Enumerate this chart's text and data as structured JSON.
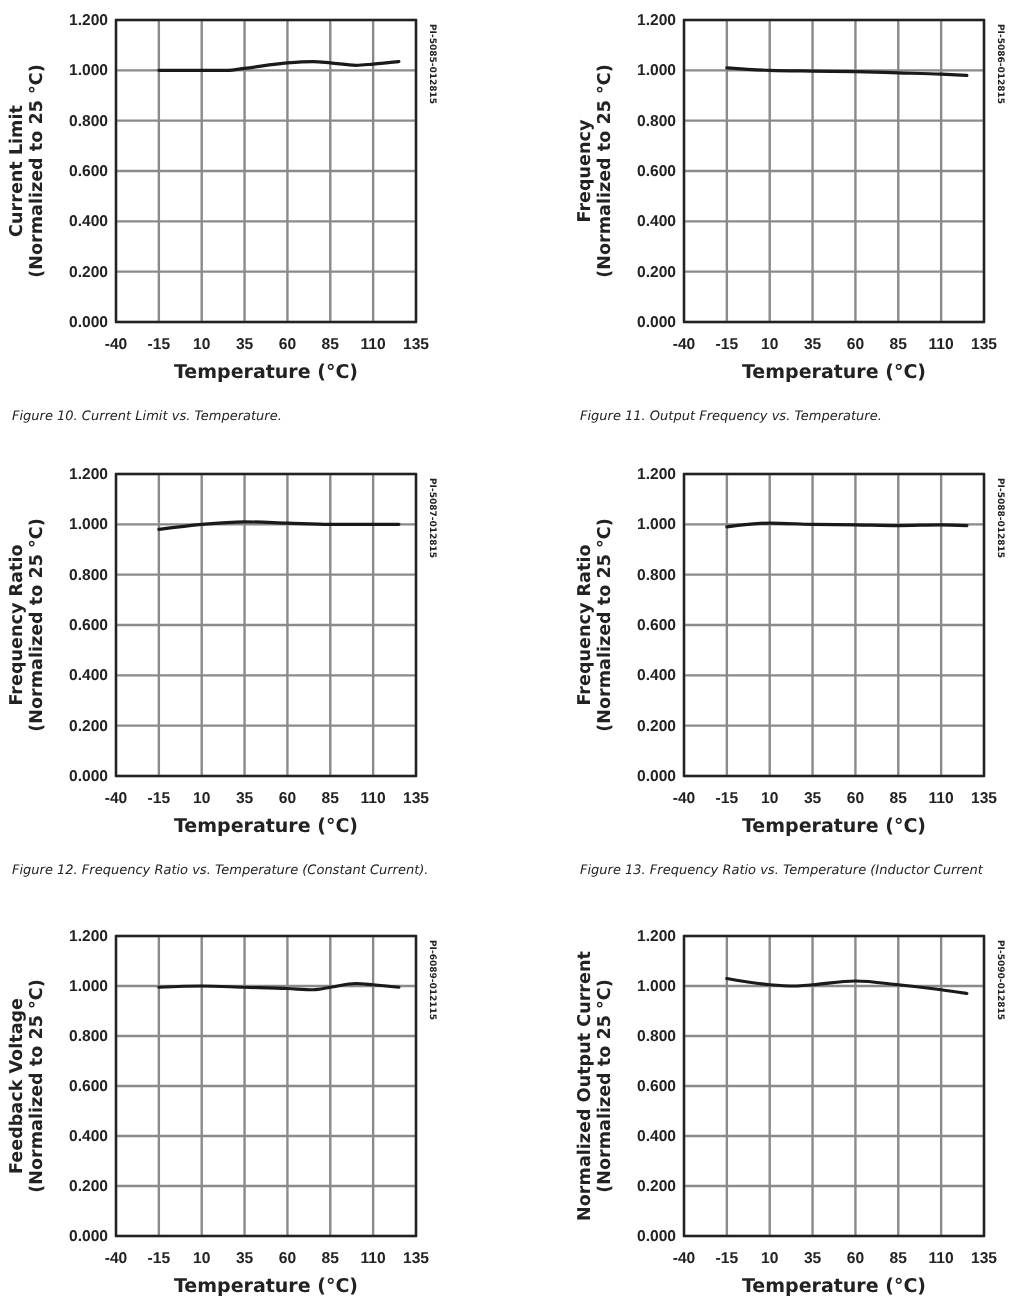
{
  "chart_data": [
    {
      "type": "line",
      "xlabel": "Temperature (°C)",
      "ylabel": "Current Limit\n(Normalized to 25 °C)",
      "x": [
        -15,
        10,
        25,
        35,
        60,
        75,
        85,
        100,
        110,
        125
      ],
      "series": [
        {
          "color": "#1a1a1a",
          "values": [
            1.0,
            1.0,
            1.0,
            1.008,
            1.03,
            1.035,
            1.03,
            1.02,
            1.025,
            1.035
          ]
        }
      ],
      "xlim": [
        -40,
        135
      ],
      "xticks": [
        -40,
        -15,
        10,
        35,
        60,
        85,
        110,
        135
      ],
      "ylim": [
        0,
        1.2
      ],
      "yticks": [
        {
          "value": 0,
          "label": "0.000"
        },
        {
          "value": 0.2,
          "label": "0.200"
        },
        {
          "value": 0.4,
          "label": "0.400"
        },
        {
          "value": 0.6,
          "label": "0.600"
        },
        {
          "value": 0.8,
          "label": "0.800"
        },
        {
          "value": 1,
          "label": "1.000"
        },
        {
          "value": 1.2,
          "label": "1.200"
        }
      ],
      "grid": true,
      "marker": "none",
      "line_style": "solid",
      "annotations": [
        "PI-5085-012815",
        "Figure 10.  Current Limit vs. Temperature."
      ]
    },
    {
      "type": "line",
      "xlabel": "Temperature (°C)",
      "ylabel": "Frequency\n(Normalized to 25 °C)",
      "x": [
        -15,
        10,
        35,
        60,
        85,
        110,
        125
      ],
      "series": [
        {
          "color": "#1a1a1a",
          "values": [
            1.01,
            1.0,
            0.997,
            0.995,
            0.99,
            0.985,
            0.98
          ]
        }
      ],
      "xlim": [
        -40,
        135
      ],
      "xticks": [
        -40,
        -15,
        10,
        35,
        60,
        85,
        110,
        135
      ],
      "ylim": [
        0,
        1.2
      ],
      "yticks": [
        {
          "value": 0,
          "label": "0.000"
        },
        {
          "value": 0.2,
          "label": "0.200"
        },
        {
          "value": 0.4,
          "label": "0.400"
        },
        {
          "value": 0.6,
          "label": "0.600"
        },
        {
          "value": 0.8,
          "label": "0.800"
        },
        {
          "value": 1,
          "label": "1.000"
        },
        {
          "value": 1.2,
          "label": "1.200"
        }
      ],
      "grid": true,
      "marker": "none",
      "line_style": "solid",
      "annotations": [
        "PI-5086-012815",
        "Figure 11.   Output Frequency vs. Temperature."
      ]
    },
    {
      "type": "line",
      "xlabel": "Temperature (°C)",
      "ylabel": "Frequency Ratio\n(Normalized to 25 °C)",
      "x": [
        -15,
        10,
        35,
        60,
        85,
        110,
        125
      ],
      "series": [
        {
          "color": "#1a1a1a",
          "values": [
            0.98,
            1.0,
            1.01,
            1.005,
            1.0,
            1.0,
            1.0
          ]
        }
      ],
      "xlim": [
        -40,
        135
      ],
      "xticks": [
        -40,
        -15,
        10,
        35,
        60,
        85,
        110,
        135
      ],
      "ylim": [
        0,
        1.2
      ],
      "yticks": [
        {
          "value": 0,
          "label": "0.000"
        },
        {
          "value": 0.2,
          "label": "0.200"
        },
        {
          "value": 0.4,
          "label": "0.400"
        },
        {
          "value": 0.6,
          "label": "0.600"
        },
        {
          "value": 0.8,
          "label": "0.800"
        },
        {
          "value": 1,
          "label": "1.000"
        },
        {
          "value": 1.2,
          "label": "1.200"
        }
      ],
      "grid": true,
      "marker": "none",
      "line_style": "solid",
      "annotations": [
        "PI-5087-012815",
        "Figure 12.  Frequency Ratio vs. Temperature (Constant Current)."
      ]
    },
    {
      "type": "line",
      "xlabel": "Temperature (°C)",
      "ylabel": "Frequency Ratio\n(Normalized to 25 °C)",
      "x": [
        -15,
        10,
        35,
        60,
        85,
        110,
        125
      ],
      "series": [
        {
          "color": "#1a1a1a",
          "values": [
            0.99,
            1.005,
            1.0,
            0.998,
            0.995,
            0.998,
            0.995
          ]
        }
      ],
      "xlim": [
        -40,
        135
      ],
      "xticks": [
        -40,
        -15,
        10,
        35,
        60,
        85,
        110,
        135
      ],
      "ylim": [
        0,
        1.2
      ],
      "yticks": [
        {
          "value": 0,
          "label": "0.000"
        },
        {
          "value": 0.2,
          "label": "0.200"
        },
        {
          "value": 0.4,
          "label": "0.400"
        },
        {
          "value": 0.6,
          "label": "0.600"
        },
        {
          "value": 0.8,
          "label": "0.800"
        },
        {
          "value": 1,
          "label": "1.000"
        },
        {
          "value": 1.2,
          "label": "1.200"
        }
      ],
      "grid": true,
      "marker": "none",
      "line_style": "solid",
      "annotations": [
        "PI-5088-012815",
        "Figure 13.  Frequency Ratio vs. Temperature (Inductor Current"
      ]
    },
    {
      "type": "line",
      "xlabel": "Temperature (°C)",
      "ylabel": "Feedback Voltage\n(Normalized to 25 °C)",
      "x": [
        -15,
        10,
        35,
        60,
        75,
        85,
        100,
        110,
        125
      ],
      "series": [
        {
          "color": "#1a1a1a",
          "values": [
            0.995,
            1.0,
            0.995,
            0.99,
            0.985,
            0.995,
            1.01,
            1.005,
            0.995
          ]
        }
      ],
      "xlim": [
        -40,
        135
      ],
      "xticks": [
        -40,
        -15,
        10,
        35,
        60,
        85,
        110,
        135
      ],
      "ylim": [
        0,
        1.2
      ],
      "yticks": [
        {
          "value": 0,
          "label": "0.000"
        },
        {
          "value": 0.2,
          "label": "0.200"
        },
        {
          "value": 0.4,
          "label": "0.400"
        },
        {
          "value": 0.6,
          "label": "0.600"
        },
        {
          "value": 0.8,
          "label": "0.800"
        },
        {
          "value": 1,
          "label": "1.000"
        },
        {
          "value": 1.2,
          "label": "1.200"
        }
      ],
      "grid": true,
      "marker": "none",
      "line_style": "solid",
      "annotations": [
        "PI-6089-012115"
      ]
    },
    {
      "type": "line",
      "xlabel": "Temperature (°C)",
      "ylabel": "Normalized Output Current\n(Normalized to 25 °C)",
      "x": [
        -15,
        10,
        25,
        35,
        60,
        85,
        110,
        125
      ],
      "series": [
        {
          "color": "#1a1a1a",
          "values": [
            1.03,
            1.005,
            1.0,
            1.005,
            1.02,
            1.005,
            0.985,
            0.97
          ]
        }
      ],
      "xlim": [
        -40,
        135
      ],
      "xticks": [
        -40,
        -15,
        10,
        35,
        60,
        85,
        110,
        135
      ],
      "ylim": [
        0,
        1.2
      ],
      "yticks": [
        {
          "value": 0,
          "label": "0.000"
        },
        {
          "value": 0.2,
          "label": "0.200"
        },
        {
          "value": 0.4,
          "label": "0.400"
        },
        {
          "value": 0.6,
          "label": "0.600"
        },
        {
          "value": 0.8,
          "label": "0.800"
        },
        {
          "value": 1,
          "label": "1.000"
        },
        {
          "value": 1.2,
          "label": "1.200"
        }
      ],
      "grid": true,
      "marker": "none",
      "line_style": "solid",
      "annotations": [
        "PI-5090-012815"
      ]
    }
  ]
}
